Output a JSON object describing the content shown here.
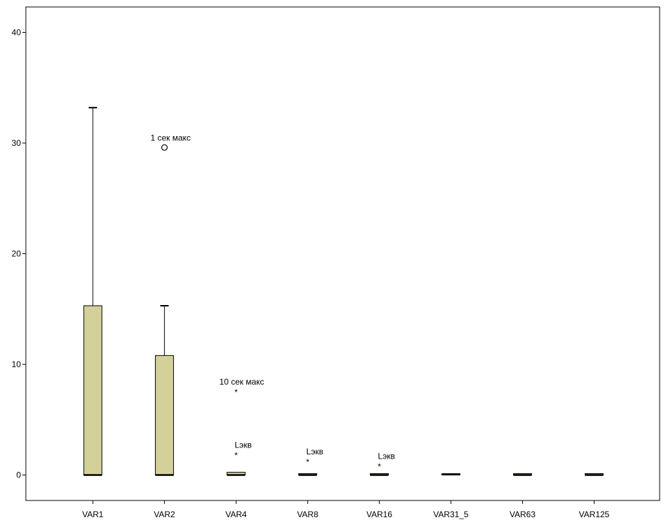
{
  "chart_data": {
    "type": "box",
    "title": "",
    "xlabel": "",
    "ylabel": "",
    "ylim": [
      -2.3,
      42.3
    ],
    "yticks": [
      0,
      10,
      20,
      30,
      40
    ],
    "box_fill": "#d4d09a",
    "categories": [
      "VAR1",
      "VAR2",
      "VAR4",
      "VAR8",
      "VAR16",
      "VAR31_5",
      "VAR63",
      "VAR125"
    ],
    "boxes": [
      {
        "label": "VAR1",
        "min": 0,
        "q1": 0,
        "median": 0,
        "q3": 15.3,
        "max": 33.2
      },
      {
        "label": "VAR2",
        "min": 0,
        "q1": 0,
        "median": 0,
        "q3": 10.8,
        "max": 15.3
      },
      {
        "label": "VAR4",
        "min": 0,
        "q1": 0,
        "median": 0,
        "q3": 0.25,
        "max": 0.25
      },
      {
        "label": "VAR8",
        "min": 0,
        "q1": 0,
        "median": 0,
        "q3": 0.02,
        "max": 0.02
      },
      {
        "label": "VAR16",
        "min": 0,
        "q1": 0,
        "median": 0,
        "q3": 0.04,
        "max": 0.04
      },
      {
        "label": "VAR31_5",
        "min": 0,
        "q1": 0,
        "median": 0.05,
        "q3": 0.12,
        "max": 0.12
      },
      {
        "label": "VAR63",
        "min": 0,
        "q1": 0,
        "median": 0,
        "q3": 0.03,
        "max": 0.03
      },
      {
        "label": "VAR125",
        "min": 0,
        "q1": 0,
        "median": 0,
        "q3": 0.02,
        "max": 0.02
      }
    ],
    "outliers": [
      {
        "category": "VAR2",
        "value": 29.6,
        "marker": "circle",
        "label": "1 сек макс"
      },
      {
        "category": "VAR4",
        "value": 7.6,
        "marker": "star",
        "label": "10 сек макс"
      },
      {
        "category": "VAR4",
        "value": 1.9,
        "marker": "star",
        "label": "Lэкв"
      },
      {
        "category": "VAR8",
        "value": 1.3,
        "marker": "star",
        "label": "Lэкв"
      },
      {
        "category": "VAR16",
        "value": 0.9,
        "marker": "star",
        "label": "Lэкв"
      }
    ],
    "grid": false,
    "legend": "none"
  }
}
